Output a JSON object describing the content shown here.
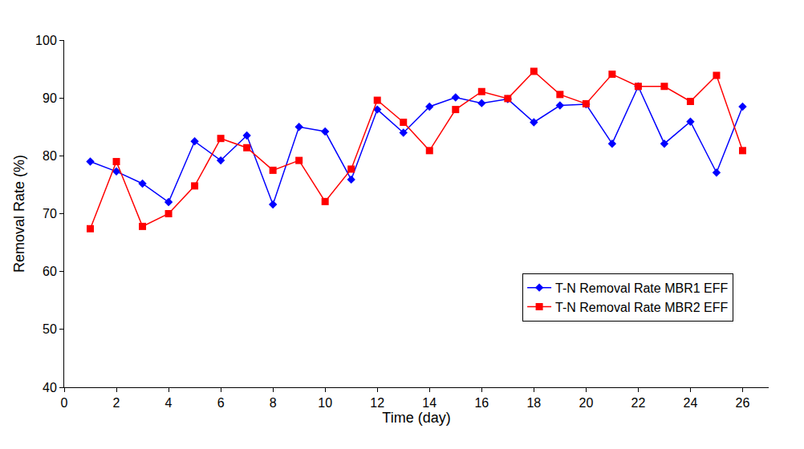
{
  "chart_data": {
    "type": "line",
    "x_label": "Time (day)",
    "y_label": "Removal Rate (%)",
    "x": [
      1,
      2,
      3,
      4,
      5,
      6,
      7,
      8,
      9,
      10,
      11,
      12,
      13,
      14,
      15,
      16,
      17,
      18,
      19,
      20,
      21,
      22,
      23,
      24,
      25,
      26
    ],
    "series": [
      {
        "name": "T-N Removal Rate MBR1 EFF",
        "color": "#0000ff",
        "marker": "diamond",
        "values": [
          79,
          77.3,
          75.2,
          72,
          82.5,
          79.2,
          83.5,
          71.6,
          85,
          84.2,
          75.9,
          88,
          84,
          88.5,
          90.1,
          89.1,
          89.8,
          85.8,
          88.7,
          88.9,
          82.1,
          92,
          82.1,
          85.9,
          77.1,
          88.5
        ]
      },
      {
        "name": "T-N Removal Rate MBR2 EFF",
        "color": "#ff0000",
        "marker": "square",
        "values": [
          67.4,
          79,
          67.8,
          70,
          74.8,
          83,
          81.4,
          77.5,
          79.2,
          72.1,
          77.7,
          89.6,
          85.8,
          80.9,
          88,
          91.1,
          89.9,
          94.6,
          90.6,
          89,
          94.1,
          92,
          92,
          89.4,
          93.9,
          80.9
        ]
      }
    ],
    "xlim": [
      0,
      27
    ],
    "xticks": [
      0,
      2,
      4,
      6,
      8,
      10,
      12,
      14,
      16,
      18,
      20,
      22,
      24,
      26
    ],
    "ylim": [
      40,
      100
    ],
    "yticks": [
      40,
      50,
      60,
      70,
      80,
      90,
      100
    ],
    "grid": false,
    "legend": "lower right"
  }
}
